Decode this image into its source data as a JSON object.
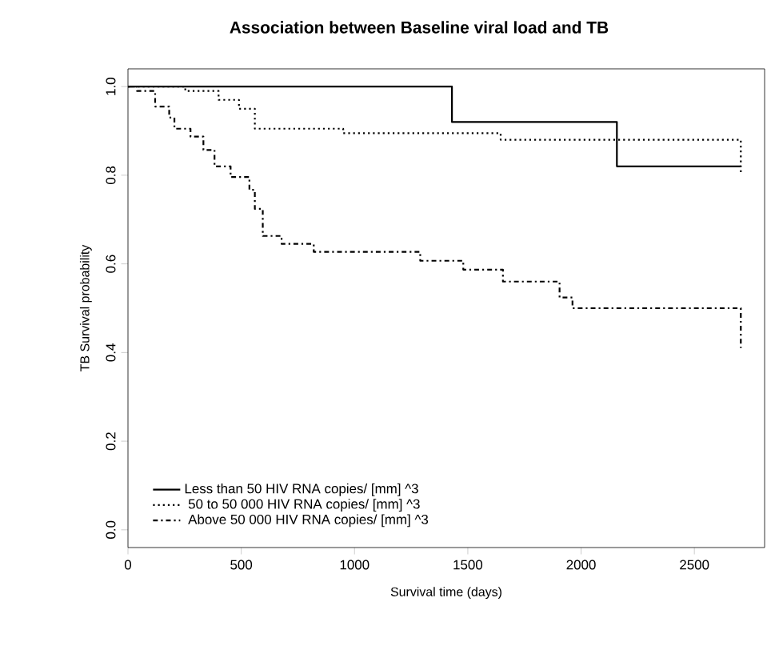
{
  "chart_data": {
    "type": "step",
    "title": "Association between Baseline viral load and TB",
    "xlabel": "Survival time (days)",
    "ylabel": "TB Survival probability",
    "series": [
      {
        "name": "Less than 50 HIV RNA copies/  [mm]  ^3",
        "color": "#000000",
        "line_style": "solid",
        "x": [
          0,
          1430,
          2158,
          2705
        ],
        "values": [
          1.0,
          0.92,
          0.82,
          0.82
        ]
      },
      {
        "name": " 50 to 50 000 HIV RNA copies/  [mm]  ^3",
        "color": "#000000",
        "line_style": "dotted",
        "x": [
          0,
          253,
          400,
          490,
          560,
          950,
          1645,
          2705
        ],
        "values": [
          1.0,
          0.99,
          0.97,
          0.95,
          0.905,
          0.895,
          0.88,
          0.8
        ]
      },
      {
        "name": " Above 50 000 HIV RNA copies/  [mm]  ^3",
        "color": "#000000",
        "line_style": "dashdot",
        "x": [
          0,
          40,
          120,
          182,
          205,
          276,
          333,
          382,
          453,
          536,
          560,
          595,
          678,
          820,
          1290,
          1480,
          1655,
          1905,
          1962,
          2705
        ],
        "values": [
          1.0,
          0.99,
          0.955,
          0.93,
          0.905,
          0.887,
          0.857,
          0.82,
          0.796,
          0.767,
          0.724,
          0.663,
          0.645,
          0.627,
          0.607,
          0.587,
          0.56,
          0.524,
          0.5,
          0.41
        ]
      }
    ],
    "xlim": [
      0,
      2810
    ],
    "ylim": [
      -0.04,
      1.04
    ],
    "xticks": [
      0,
      500,
      1000,
      1500,
      2000,
      2500
    ],
    "yticks": [
      {
        "value": 0,
        "label": "0.0"
      },
      0.2,
      0.4,
      0.6,
      0.8,
      {
        "value": 1,
        "label": "1.0"
      }
    ],
    "legend": "bottom left",
    "grid": false
  }
}
